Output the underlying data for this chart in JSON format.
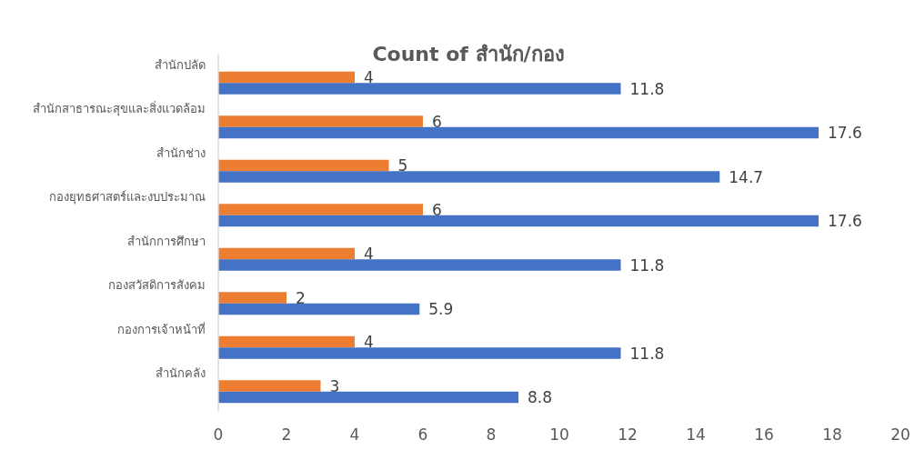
{
  "chart_data": {
    "type": "bar",
    "orientation": "horizontal",
    "title": "Count of สำนัก/กอง",
    "categories": [
      "สำนักปลัด",
      "สำนักสาธารณะสุขและสิ่งแวดล้อม",
      "สำนักช่าง",
      "กองยุทธศาสตร์และงบประมาณ",
      "สำนักการศึกษา",
      "กองสวัสดิการสังคม",
      "กองการเจ้าหน้าที่",
      "สำนักคลัง"
    ],
    "series": [
      {
        "color": "#ed7d31",
        "values": [
          4,
          6,
          5,
          6,
          4,
          2,
          4,
          3
        ]
      },
      {
        "color": "#4472c4",
        "values": [
          11.8,
          17.6,
          14.7,
          17.6,
          11.8,
          5.9,
          11.8,
          8.8
        ]
      }
    ],
    "xlim": [
      0,
      20
    ],
    "xticks": [
      0,
      2,
      4,
      6,
      8,
      10,
      12,
      14,
      16,
      18,
      20
    ],
    "data_labels": true
  }
}
